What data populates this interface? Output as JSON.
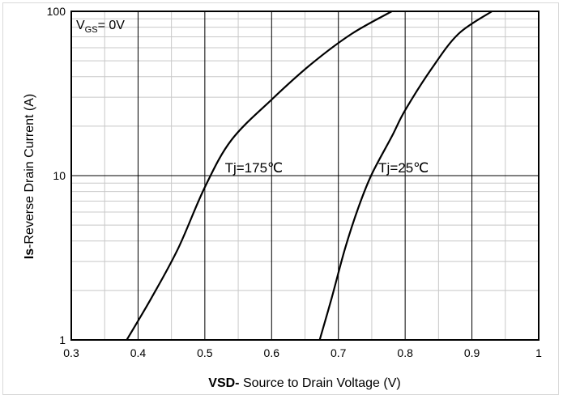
{
  "chart_data": {
    "type": "line",
    "x_axis": {
      "label_bold": "VSD-",
      "label_rest": " Source to Drain Voltage (V)",
      "range": [
        0.3,
        1.0
      ],
      "ticks": [
        "0.3",
        "0.4",
        "0.5",
        "0.6",
        "0.7",
        "0.8",
        "0.9",
        "1"
      ],
      "minor_step": 0.05
    },
    "y_axis": {
      "label_bold": "Is",
      "label_rest": "-Reverse  Drain Current  (A)",
      "scale": "log",
      "range": [
        1,
        100
      ],
      "ticks": [
        "1",
        "10",
        "100"
      ]
    },
    "annotation": {
      "prefix": "V",
      "subscript": "GS",
      "suffix": "= 0V"
    },
    "grid": true,
    "series": [
      {
        "name": "Tj=175℃",
        "x": [
          0.383,
          0.42,
          0.46,
          0.5,
          0.54,
          0.6,
          0.66,
          0.72,
          0.78
        ],
        "y": [
          1,
          1.8,
          3.6,
          8.5,
          16.5,
          29,
          48,
          73,
          100
        ]
      },
      {
        "name": "Tj=25℃",
        "x": [
          0.672,
          0.69,
          0.71,
          0.73,
          0.75,
          0.78,
          0.8,
          0.84,
          0.88,
          0.93
        ],
        "y": [
          1,
          1.8,
          3.6,
          6.4,
          10.2,
          17.3,
          25,
          45,
          73,
          100
        ]
      }
    ]
  }
}
